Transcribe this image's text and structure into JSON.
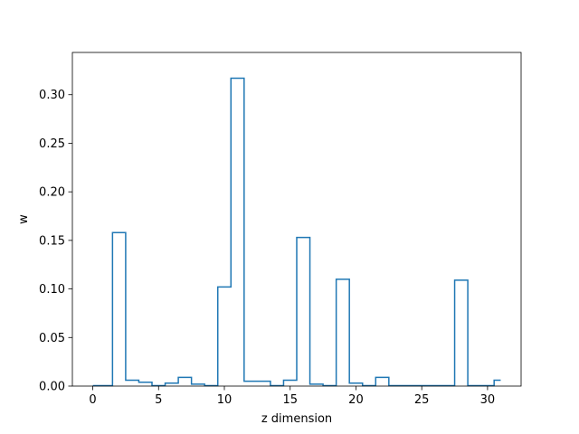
{
  "chart_data": {
    "type": "step",
    "title": "",
    "xlabel": "z dimension",
    "ylabel": "w",
    "xlim": [
      -1.55,
      32.55
    ],
    "ylim": [
      0,
      0.3435
    ],
    "xticks": [
      0,
      5,
      10,
      15,
      20,
      25,
      30
    ],
    "yticks": [
      0.0,
      0.05,
      0.1,
      0.15,
      0.2,
      0.25,
      0.3
    ],
    "ytick_labels": [
      "0.00",
      "0.05",
      "0.10",
      "0.15",
      "0.20",
      "0.25",
      "0.30"
    ],
    "grid": false,
    "step_where": "mid",
    "line_color": "#1f77b4",
    "x": [
      0,
      1,
      2,
      3,
      4,
      5,
      6,
      7,
      8,
      9,
      10,
      11,
      12,
      13,
      14,
      15,
      16,
      17,
      18,
      19,
      20,
      21,
      22,
      23,
      24,
      25,
      26,
      27,
      28,
      29,
      30,
      31
    ],
    "values": [
      0.0005,
      0.0005,
      0.158,
      0.006,
      0.004,
      0.0005,
      0.003,
      0.009,
      0.002,
      0.0005,
      0.102,
      0.317,
      0.005,
      0.005,
      0.0005,
      0.006,
      0.153,
      0.002,
      0.0005,
      0.11,
      0.003,
      0.0005,
      0.009,
      0.0005,
      0.0005,
      0.0005,
      0.0005,
      0.0005,
      0.109,
      0.0005,
      0.0005,
      0.006
    ]
  }
}
